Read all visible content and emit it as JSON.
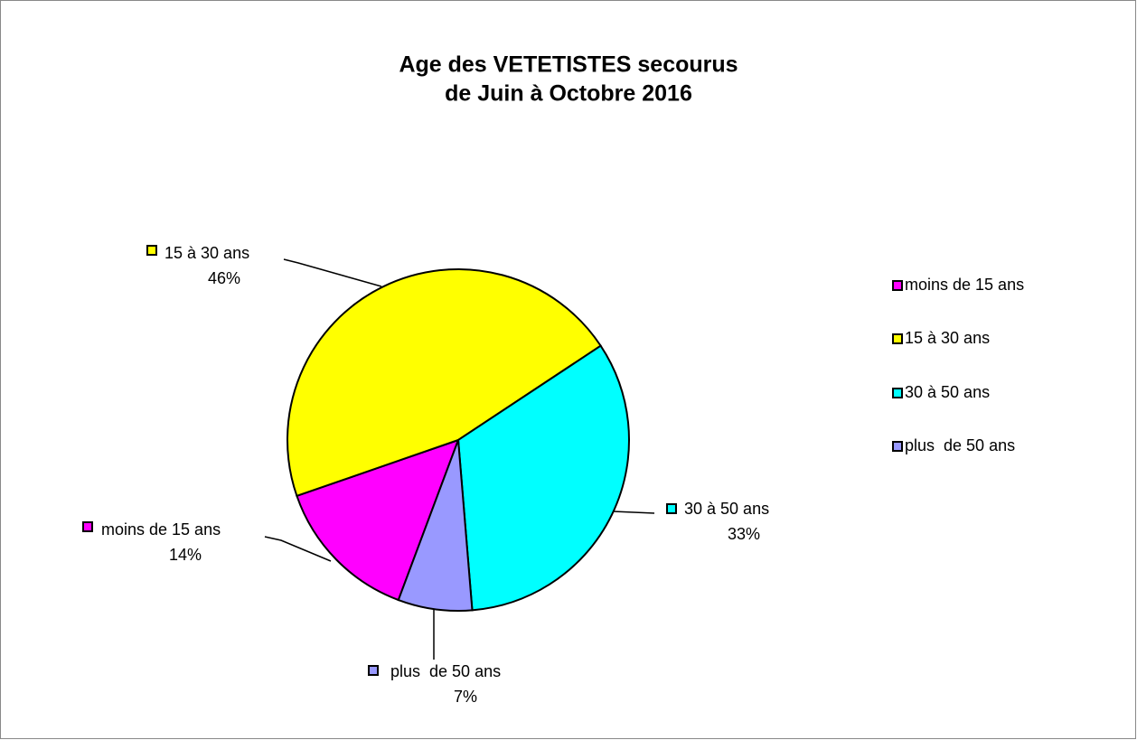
{
  "chart_data": {
    "type": "pie",
    "title": "Age des VETETISTES secourus",
    "subtitle": "de Juin à Octobre 2016",
    "categories": [
      "moins de 15 ans",
      "15 à 30 ans",
      "30 à 50 ans",
      "plus  de 50 ans"
    ],
    "values": [
      14,
      46,
      33,
      7
    ],
    "value_labels": [
      "14%",
      "46%",
      "33%",
      "7%"
    ],
    "colors": [
      "#ff00ff",
      "#ffff00",
      "#00ffff",
      "#9999ff"
    ],
    "legend": "right"
  }
}
